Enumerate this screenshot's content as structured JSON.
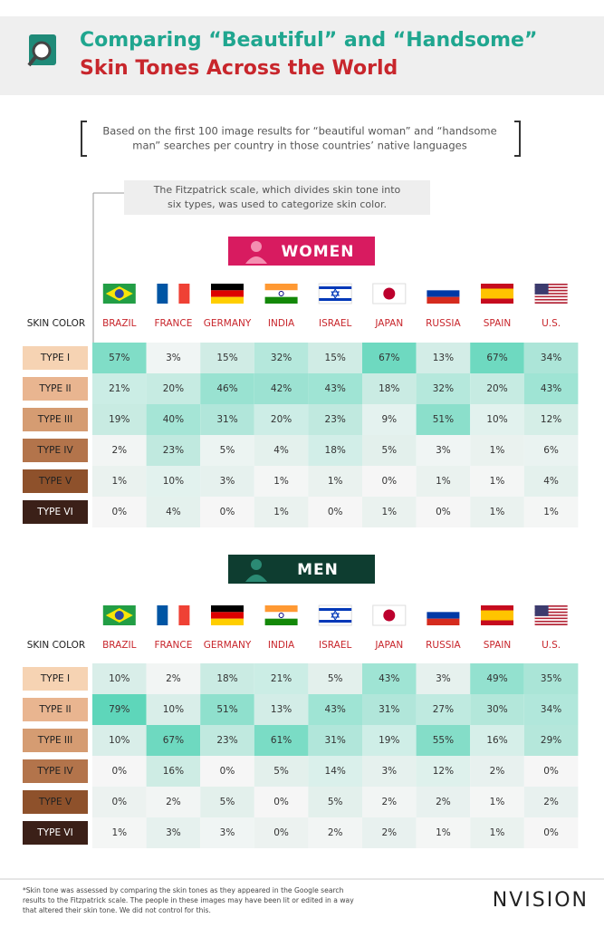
{
  "header": {
    "title_line1": "Comparing “Beautiful” and “Handsome”",
    "title_line2": "Skin Tones Across the World",
    "subtitle": [
      "Based on the first 100 image results for “beautiful woman” and “handsome",
      "man” searches per country in those countries’ native languages"
    ]
  },
  "note": [
    "The Fitzpatrick scale, which divides skin tone into",
    "six types, was used to categorize skin color."
  ],
  "tables": [
    {
      "label": "WOMEN",
      "column_header": "SKIN COLOR",
      "countries": [
        "BRAZIL",
        "FRANCE",
        "GERMANY",
        "INDIA",
        "ISRAEL",
        "JAPAN",
        "RUSSIA",
        "SPAIN",
        "U.S."
      ],
      "rows": [
        {
          "label": "TYPE I",
          "values": [
            "57%",
            "3%",
            "15%",
            "32%",
            "15%",
            "67%",
            "13%",
            "67%",
            "34%"
          ]
        },
        {
          "label": "TYPE II",
          "values": [
            "21%",
            "20%",
            "46%",
            "42%",
            "43%",
            "18%",
            "32%",
            "20%",
            "43%"
          ]
        },
        {
          "label": "TYPE III",
          "values": [
            "19%",
            "40%",
            "31%",
            "20%",
            "23%",
            "9%",
            "51%",
            "10%",
            "12%"
          ]
        },
        {
          "label": "TYPE IV",
          "values": [
            "2%",
            "23%",
            "5%",
            "4%",
            "18%",
            "5%",
            "3%",
            "1%",
            "6%"
          ]
        },
        {
          "label": "TYPE V",
          "values": [
            "1%",
            "10%",
            "3%",
            "1%",
            "1%",
            "0%",
            "1%",
            "1%",
            "4%"
          ]
        },
        {
          "label": "TYPE VI",
          "values": [
            "0%",
            "4%",
            "0%",
            "1%",
            "0%",
            "1%",
            "0%",
            "1%",
            "1%"
          ]
        }
      ]
    },
    {
      "label": "MEN",
      "column_header": "SKIN COLOR",
      "countries": [
        "BRAZIL",
        "FRANCE",
        "GERMANY",
        "INDIA",
        "ISRAEL",
        "JAPAN",
        "RUSSIA",
        "SPAIN",
        "U.S."
      ],
      "rows": [
        {
          "label": "TYPE I",
          "values": [
            "10%",
            "2%",
            "18%",
            "21%",
            "5%",
            "43%",
            "3%",
            "49%",
            "35%"
          ]
        },
        {
          "label": "TYPE II",
          "values": [
            "79%",
            "10%",
            "51%",
            "13%",
            "43%",
            "31%",
            "27%",
            "30%",
            "34%"
          ]
        },
        {
          "label": "TYPE III",
          "values": [
            "10%",
            "67%",
            "23%",
            "61%",
            "31%",
            "19%",
            "55%",
            "16%",
            "29%"
          ]
        },
        {
          "label": "TYPE IV",
          "values": [
            "0%",
            "16%",
            "0%",
            "5%",
            "14%",
            "3%",
            "12%",
            "2%",
            "0%"
          ]
        },
        {
          "label": "TYPE V",
          "values": [
            "0%",
            "2%",
            "5%",
            "0%",
            "5%",
            "2%",
            "2%",
            "1%",
            "2%"
          ]
        },
        {
          "label": "TYPE VI",
          "values": [
            "1%",
            "3%",
            "3%",
            "0%",
            "2%",
            "2%",
            "1%",
            "1%",
            "0%"
          ]
        }
      ]
    }
  ],
  "footnote": [
    "*Skin tone was assessed by comparing the skin tones as they appeared in the Google search",
    "results to the Fitzpatrick scale. The people in these images may have been lit or edited in a way",
    "that altered their skin tone. We did not control for this."
  ],
  "logo": "NVISION"
}
